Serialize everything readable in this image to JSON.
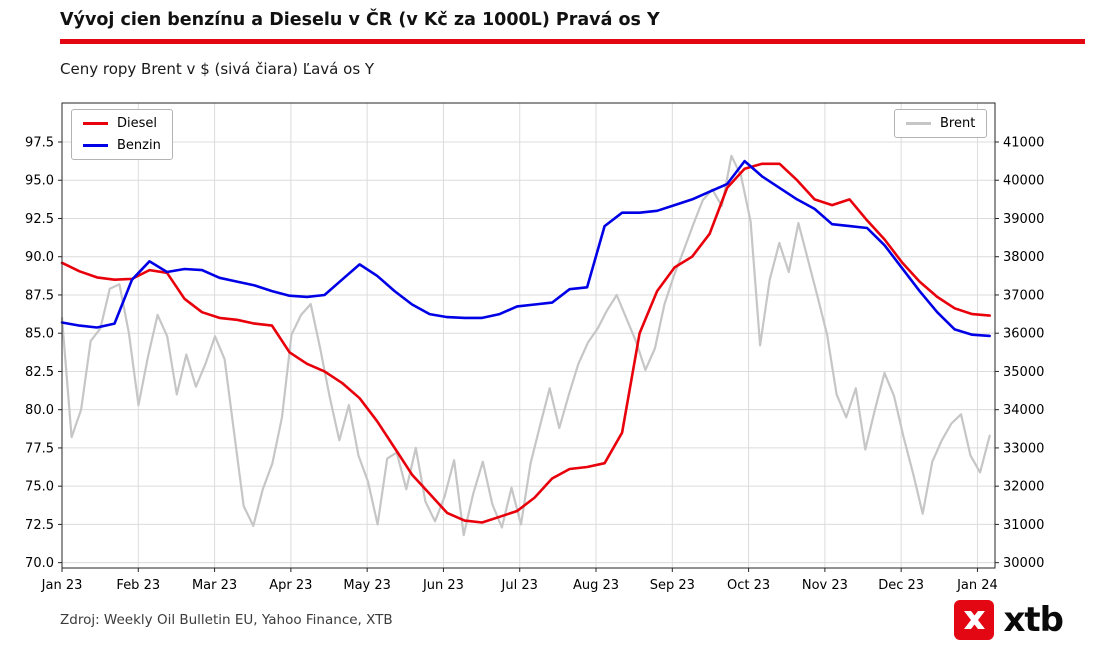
{
  "header": {
    "title": "Vývoj cien benzínu a Dieselu v ČR (v Kč za 1000L) Pravá os Y",
    "subtitle": "Ceny ropy Brent v $ (sivá čiara) Ľavá os Y"
  },
  "footer": {
    "source": "Zdroj: Weekly Oil Bulletin EU, Yahoo Finance, XTB",
    "logo_text": "xtb"
  },
  "colors": {
    "accent_red": "#e30613",
    "diesel": "#e8000b",
    "benzin": "#0000e6",
    "brent": "#c6c6c6",
    "grid": "#dcdcdc",
    "frame": "#262626"
  },
  "chart_data": {
    "type": "line",
    "title": "Vývoj cien benzínu a Dieselu v ČR (v Kč za 1000L)",
    "subtitle": "Ceny ropy Brent v $ (sivá čiara)",
    "grid": true,
    "x_tick_labels": [
      "Jan 23",
      "Feb 23",
      "Mar 23",
      "Apr 23",
      "May 23",
      "Jun 23",
      "Jul 23",
      "Aug 23",
      "Sep 23",
      "Oct 23",
      "Nov 23",
      "Dec 23",
      "Jan 24"
    ],
    "x_domain_months": [
      0,
      12.23
    ],
    "left_axis": {
      "label_hint": "Brent USD/bbl",
      "ticks": [
        70.0,
        72.5,
        75.0,
        77.5,
        80.0,
        82.5,
        85.0,
        87.5,
        90.0,
        92.5,
        95.0,
        97.5
      ],
      "tick_labels": [
        "70.0",
        "72.5",
        "75.0",
        "77.5",
        "80.0",
        "82.5",
        "85.0",
        "87.5",
        "90.0",
        "92.5",
        "95.0",
        "97.5"
      ],
      "range": [
        69.65,
        100.05
      ]
    },
    "right_axis": {
      "label_hint": "Kč za 1000L",
      "ticks": [
        30000,
        31000,
        32000,
        33000,
        34000,
        35000,
        36000,
        37000,
        38000,
        39000,
        40000,
        41000
      ],
      "tick_labels": [
        "30000",
        "31000",
        "32000",
        "33000",
        "34000",
        "35000",
        "36000",
        "37000",
        "38000",
        "39000",
        "40000",
        "41000"
      ],
      "range": [
        29860,
        42020
      ]
    },
    "legend_left_entries": [
      "Diesel",
      "Benzin"
    ],
    "legend_right_entries": [
      "Brent"
    ],
    "series": [
      {
        "name": "Diesel",
        "axis": "right",
        "color": "#e8000b",
        "line_width": 2.6,
        "x_span_months": [
          0,
          12.16
        ],
        "values": [
          37840,
          37620,
          37460,
          37400,
          37420,
          37650,
          37580,
          36900,
          36550,
          36400,
          36350,
          36250,
          36200,
          35500,
          35200,
          35000,
          34700,
          34300,
          33700,
          33000,
          32300,
          31800,
          31300,
          31100,
          31050,
          31200,
          31350,
          31700,
          32200,
          32450,
          32500,
          32600,
          33400,
          36000,
          37100,
          37720,
          38000,
          38600,
          39800,
          40300,
          40430,
          40430,
          40000,
          39500,
          39350,
          39500,
          38950,
          38450,
          37850,
          37350,
          36950,
          36650,
          36500,
          36460
        ]
      },
      {
        "name": "Benzin",
        "axis": "right",
        "color": "#0000e6",
        "line_width": 2.6,
        "x_span_months": [
          0,
          12.16
        ],
        "values": [
          36280,
          36200,
          36150,
          36250,
          37400,
          37880,
          37600,
          37680,
          37650,
          37450,
          37350,
          37250,
          37100,
          36980,
          36950,
          37000,
          37400,
          37800,
          37500,
          37100,
          36750,
          36500,
          36420,
          36400,
          36400,
          36500,
          36700,
          36750,
          36800,
          37150,
          37200,
          38800,
          39150,
          39150,
          39200,
          39350,
          39500,
          39700,
          39900,
          40500,
          40100,
          39800,
          39500,
          39250,
          38850,
          38800,
          38750,
          38300,
          37700,
          37100,
          36550,
          36100,
          35960,
          35930
        ]
      },
      {
        "name": "Brent",
        "axis": "left",
        "color": "#c6c6c6",
        "line_width": 2.2,
        "x_span_months": [
          0,
          12.16
        ],
        "values": [
          86.0,
          78.2,
          80.0,
          84.5,
          85.3,
          87.9,
          88.2,
          85.0,
          80.3,
          83.5,
          86.2,
          84.8,
          81.0,
          83.6,
          81.5,
          83.0,
          84.8,
          83.3,
          78.5,
          73.7,
          72.4,
          74.8,
          76.5,
          79.5,
          84.9,
          86.2,
          86.9,
          84.0,
          80.8,
          78.0,
          80.3,
          77.0,
          75.3,
          72.5,
          76.8,
          77.2,
          74.8,
          77.5,
          74.0,
          72.7,
          74.3,
          76.7,
          71.8,
          74.5,
          76.6,
          73.8,
          72.3,
          74.9,
          72.5,
          76.5,
          79.0,
          81.4,
          78.8,
          81.0,
          83.0,
          84.4,
          85.3,
          86.5,
          87.5,
          86.0,
          84.5,
          82.6,
          84.0,
          86.9,
          88.8,
          90.4,
          92.1,
          93.7,
          94.4,
          93.3,
          96.6,
          95.3,
          92.3,
          84.2,
          88.5,
          90.9,
          89.0,
          92.2,
          89.8,
          87.4,
          84.9,
          81.0,
          79.5,
          81.4,
          77.4,
          80.0,
          82.4,
          80.9,
          78.2,
          75.8,
          73.2,
          76.6,
          78.0,
          79.1,
          79.7,
          77.0,
          75.9,
          78.3
        ]
      }
    ]
  }
}
